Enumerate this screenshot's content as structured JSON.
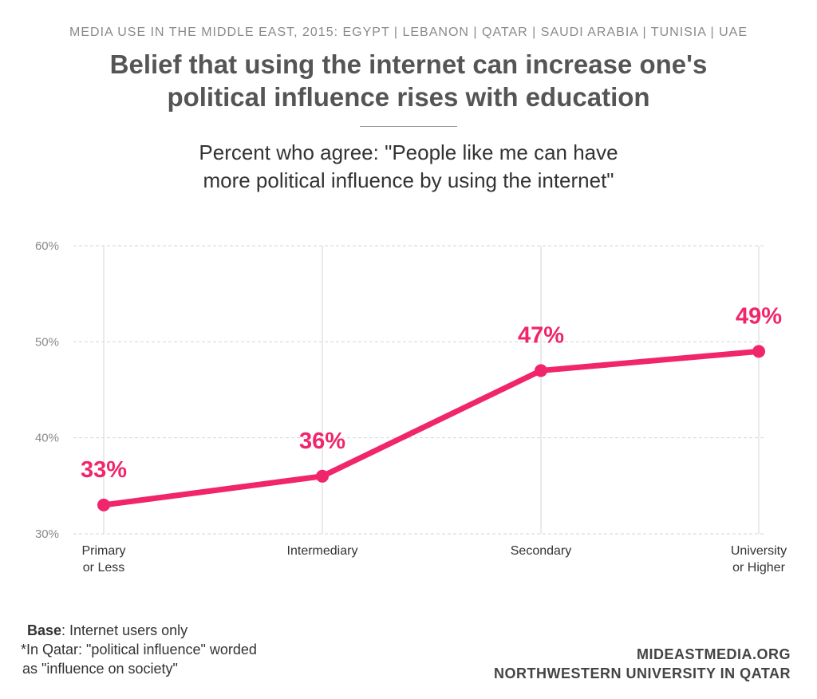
{
  "header": {
    "kicker": "MEDIA USE IN THE MIDDLE EAST, 2015: EGYPT | LEBANON | QATAR | SAUDI ARABIA | TUNISIA | UAE",
    "title_line1": "Belief that using the internet can increase one's",
    "title_line2": "political influence rises with education",
    "subtitle_line1": "Percent who agree: \"People like me can have",
    "subtitle_line2": "more political influence by using the internet\""
  },
  "chart_data": {
    "type": "line",
    "title": "Belief that using the internet can increase one's political influence rises with education",
    "subtitle": "Percent who agree: \"People like me can have more political influence by using the internet\"",
    "categories": [
      [
        "Primary",
        "or Less"
      ],
      [
        "Intermediary"
      ],
      [
        "Secondary"
      ],
      [
        "University",
        "or Higher"
      ]
    ],
    "series": [
      {
        "name": "Agree",
        "values": [
          33,
          36,
          47,
          49
        ]
      }
    ],
    "data_labels": [
      "33%",
      "36%",
      "47%",
      "49%"
    ],
    "yticks": [
      30,
      40,
      50,
      60
    ],
    "ytick_labels": [
      "30%",
      "40%",
      "50%",
      "60%"
    ],
    "ylim": [
      30,
      60
    ],
    "xlabel": "",
    "ylabel": "",
    "grid": true,
    "legend": "none"
  },
  "colors": {
    "series": "#f0256b",
    "grid": "#d6d6d6",
    "tick_text": "#8a8a8a",
    "category_text": "#333333"
  },
  "footer": {
    "base_label": "Base",
    "base_text": ": Internet users only",
    "note_line1": "*In Qatar: \"political influence\" worded",
    "note_line2": "as \"influence on society\"",
    "source_line1": "MIDEASTMEDIA.ORG",
    "source_line2": "NORTHWESTERN UNIVERSITY IN QATAR"
  }
}
